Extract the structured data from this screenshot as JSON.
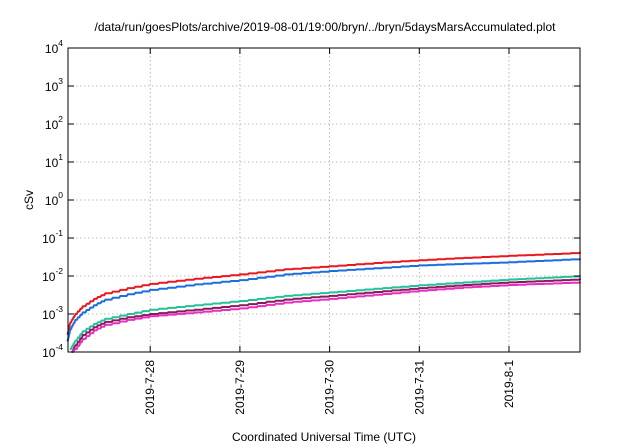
{
  "chart_data": {
    "type": "line",
    "title": "/data/run/goesPlots/archive/2019-08-01/19:00/bryn/../bryn/5daysMarsAccumulated.plot",
    "xlabel": "Coordinated Universal Time (UTC)",
    "ylabel": "cSv",
    "y_scale": "log",
    "ylim": [
      0.0001,
      10000
    ],
    "xlim": [
      "2019-07-27T02:00",
      "2019-08-01T19:00"
    ],
    "grid": true,
    "legend": "none",
    "y_ticks": [
      {
        "base": "10",
        "exp": "-4"
      },
      {
        "base": "10",
        "exp": "-3"
      },
      {
        "base": "10",
        "exp": "-2"
      },
      {
        "base": "10",
        "exp": "-1"
      },
      {
        "base": "10",
        "exp": "0"
      },
      {
        "base": "10",
        "exp": "1"
      },
      {
        "base": "10",
        "exp": "2"
      },
      {
        "base": "10",
        "exp": "3"
      },
      {
        "base": "10",
        "exp": "4"
      }
    ],
    "y_tick_values": [
      0.0001,
      0.001,
      0.01,
      0.1,
      1,
      10,
      100,
      1000,
      10000
    ],
    "x_ticks": [
      {
        "label": "2019-7-28",
        "value": "2019-07-28T00:00"
      },
      {
        "label": "2019-7-29",
        "value": "2019-07-29T00:00"
      },
      {
        "label": "2019-7-30",
        "value": "2019-07-30T00:00"
      },
      {
        "label": "2019-7-31",
        "value": "2019-07-31T00:00"
      },
      {
        "label": "2019-8-1",
        "value": "2019-08-01T00:00"
      }
    ],
    "series": [
      {
        "color": "#e8191e",
        "x": [
          "2019-07-27T02:00",
          "2019-07-27T02:40",
          "2019-07-27T04:00",
          "2019-07-27T06:00",
          "2019-07-27T09:00",
          "2019-07-27T12:00",
          "2019-07-27T18:00",
          "2019-07-28T00:00",
          "2019-07-28T12:00",
          "2019-07-29T00:00",
          "2019-07-29T12:00",
          "2019-07-30T00:00",
          "2019-07-30T12:00",
          "2019-07-31T00:00",
          "2019-07-31T12:00",
          "2019-08-01T00:00",
          "2019-08-01T12:00",
          "2019-08-01T19:00"
        ],
        "values": [
          0.0003,
          0.0006,
          0.001,
          0.0016,
          0.0025,
          0.0035,
          0.0048,
          0.0062,
          0.0085,
          0.011,
          0.015,
          0.018,
          0.022,
          0.026,
          0.03,
          0.034,
          0.038,
          0.041
        ]
      },
      {
        "color": "#1a6fe0",
        "x": [
          "2019-07-27T02:00",
          "2019-07-27T02:40",
          "2019-07-27T04:00",
          "2019-07-27T06:00",
          "2019-07-27T09:00",
          "2019-07-27T12:00",
          "2019-07-27T18:00",
          "2019-07-28T00:00",
          "2019-07-28T12:00",
          "2019-07-29T00:00",
          "2019-07-29T12:00",
          "2019-07-30T00:00",
          "2019-07-30T12:00",
          "2019-07-31T00:00",
          "2019-07-31T12:00",
          "2019-08-01T00:00",
          "2019-08-01T12:00",
          "2019-08-01T19:00"
        ],
        "values": [
          0.0002,
          0.0004,
          0.0007,
          0.0011,
          0.0017,
          0.0024,
          0.0033,
          0.0043,
          0.006,
          0.0078,
          0.011,
          0.0135,
          0.016,
          0.019,
          0.021,
          0.023,
          0.026,
          0.028
        ]
      },
      {
        "color": "#22c39a",
        "x": [
          "2019-07-27T02:40",
          "2019-07-27T04:00",
          "2019-07-27T06:00",
          "2019-07-27T09:00",
          "2019-07-27T12:00",
          "2019-07-27T18:00",
          "2019-07-28T00:00",
          "2019-07-28T12:00",
          "2019-07-29T00:00",
          "2019-07-29T12:00",
          "2019-07-30T00:00",
          "2019-07-30T12:00",
          "2019-07-31T00:00",
          "2019-07-31T12:00",
          "2019-08-01T00:00",
          "2019-08-01T12:00",
          "2019-08-01T19:00"
        ],
        "values": [
          0.00012,
          0.0002,
          0.00035,
          0.00055,
          0.00075,
          0.001,
          0.0013,
          0.0017,
          0.0022,
          0.003,
          0.0037,
          0.0046,
          0.0057,
          0.0068,
          0.0081,
          0.0092,
          0.01
        ]
      },
      {
        "color": "#8a1a5a",
        "x": [
          "2019-07-27T03:10",
          "2019-07-27T04:00",
          "2019-07-27T06:00",
          "2019-07-27T09:00",
          "2019-07-27T12:00",
          "2019-07-27T18:00",
          "2019-07-28T00:00",
          "2019-07-28T12:00",
          "2019-07-29T00:00",
          "2019-07-29T12:00",
          "2019-07-30T00:00",
          "2019-07-30T12:00",
          "2019-07-31T00:00",
          "2019-07-31T12:00",
          "2019-08-01T00:00",
          "2019-08-01T12:00",
          "2019-08-01T19:00"
        ],
        "values": [
          0.0001,
          0.00015,
          0.00028,
          0.00045,
          0.00062,
          0.00082,
          0.001,
          0.0013,
          0.0017,
          0.0024,
          0.003,
          0.0038,
          0.0048,
          0.0058,
          0.0068,
          0.0076,
          0.0082
        ]
      },
      {
        "color": "#e52fbf",
        "x": [
          "2019-07-27T03:20",
          "2019-07-27T04:00",
          "2019-07-27T06:00",
          "2019-07-27T09:00",
          "2019-07-27T12:00",
          "2019-07-27T18:00",
          "2019-07-28T00:00",
          "2019-07-28T12:00",
          "2019-07-29T00:00",
          "2019-07-29T12:00",
          "2019-07-30T00:00",
          "2019-07-30T12:00",
          "2019-07-31T00:00",
          "2019-07-31T12:00",
          "2019-08-01T00:00",
          "2019-08-01T12:00",
          "2019-08-01T19:00"
        ],
        "values": [
          0.0001,
          0.00012,
          0.00022,
          0.00037,
          0.00052,
          0.0007,
          0.00088,
          0.0011,
          0.0014,
          0.002,
          0.0025,
          0.0032,
          0.0041,
          0.005,
          0.0058,
          0.0064,
          0.0068
        ]
      }
    ]
  }
}
